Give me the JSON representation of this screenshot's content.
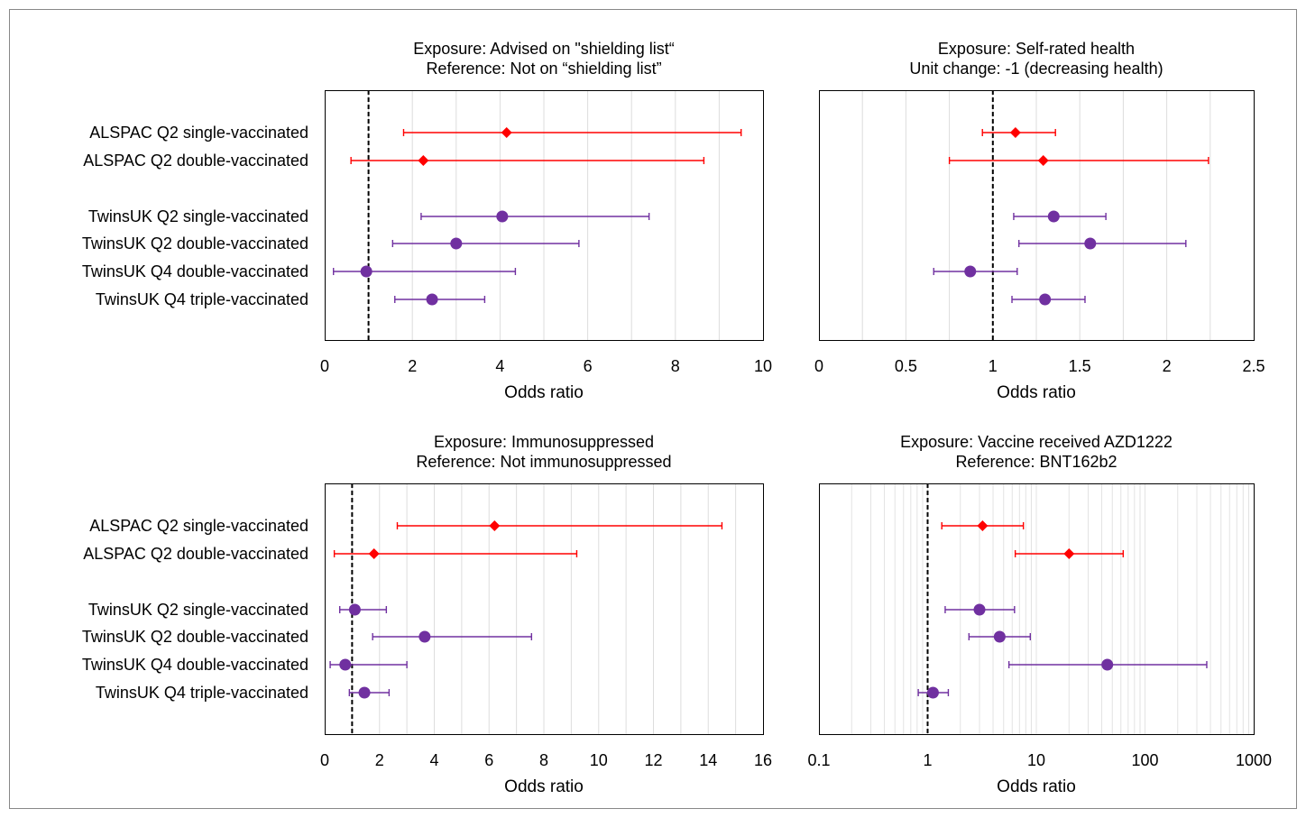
{
  "chart_data": [
    {
      "type": "scatter",
      "subtype": "forest-plot",
      "title": [
        "Exposure: Advised on \"shielding list“",
        "Reference: Not on “shielding list”"
      ],
      "xlabel": "Odds ratio",
      "ylabel": "",
      "xscale": "linear",
      "xlim": [
        0,
        10
      ],
      "xticks": [
        0,
        2,
        4,
        6,
        8,
        10
      ],
      "xtick_labels": [
        "0",
        "2",
        "4",
        "6",
        "8",
        "10"
      ],
      "reference_line": 1,
      "grid": "vertical",
      "categories": [
        "ALSPAC Q2 single-vaccinated",
        "ALSPAC Q2 double-vaccinated",
        "TwinsUK Q2 single-vaccinated",
        "TwinsUK Q2 double-vaccinated",
        "TwinsUK Q4 double-vaccinated",
        "TwinsUK Q4 triple-vaccinated"
      ],
      "points": [
        {
          "label": "ALSPAC Q2 single-vaccinated",
          "or": 4.15,
          "lo": 1.8,
          "hi": 9.5,
          "marker": "diamond",
          "color": "#ff0000"
        },
        {
          "label": "ALSPAC Q2 double-vaccinated",
          "or": 2.25,
          "lo": 0.6,
          "hi": 8.65,
          "marker": "diamond",
          "color": "#ff0000"
        },
        {
          "label": "TwinsUK Q2 single-vaccinated",
          "or": 4.05,
          "lo": 2.2,
          "hi": 7.4,
          "marker": "circle",
          "color": "#7030a0"
        },
        {
          "label": "TwinsUK Q2 double-vaccinated",
          "or": 3.0,
          "lo": 1.55,
          "hi": 5.8,
          "marker": "circle",
          "color": "#7030a0"
        },
        {
          "label": "TwinsUK Q4 double-vaccinated",
          "or": 0.95,
          "lo": 0.2,
          "hi": 4.35,
          "marker": "circle",
          "color": "#7030a0"
        },
        {
          "label": "TwinsUK Q4 triple-vaccinated",
          "or": 2.45,
          "lo": 1.6,
          "hi": 3.65,
          "marker": "circle",
          "color": "#7030a0"
        }
      ]
    },
    {
      "type": "scatter",
      "subtype": "forest-plot",
      "title": [
        "Exposure: Self-rated health",
        "Unit change: -1 (decreasing health)"
      ],
      "xlabel": "Odds ratio",
      "ylabel": "",
      "xscale": "linear",
      "xlim": [
        0,
        2.5
      ],
      "xticks": [
        0,
        0.5,
        1,
        1.5,
        2,
        2.5
      ],
      "xtick_labels": [
        "0",
        "0.5",
        "1",
        "1.5",
        "2",
        "2.5"
      ],
      "reference_line": 1,
      "grid": "vertical",
      "categories": [
        "ALSPAC Q2 single-vaccinated",
        "ALSPAC Q2 double-vaccinated",
        "TwinsUK Q2 single-vaccinated",
        "TwinsUK Q2 double-vaccinated",
        "TwinsUK Q4 double-vaccinated",
        "TwinsUK Q4 triple-vaccinated"
      ],
      "points": [
        {
          "label": "ALSPAC Q2 single-vaccinated",
          "or": 1.13,
          "lo": 0.94,
          "hi": 1.36,
          "marker": "diamond",
          "color": "#ff0000"
        },
        {
          "label": "ALSPAC Q2 double-vaccinated",
          "or": 1.29,
          "lo": 0.75,
          "hi": 2.24,
          "marker": "diamond",
          "color": "#ff0000"
        },
        {
          "label": "TwinsUK Q2 single-vaccinated",
          "or": 1.35,
          "lo": 1.12,
          "hi": 1.65,
          "marker": "circle",
          "color": "#7030a0"
        },
        {
          "label": "TwinsUK Q2 double-vaccinated",
          "or": 1.56,
          "lo": 1.15,
          "hi": 2.11,
          "marker": "circle",
          "color": "#7030a0"
        },
        {
          "label": "TwinsUK Q4 double-vaccinated",
          "or": 0.87,
          "lo": 0.66,
          "hi": 1.14,
          "marker": "circle",
          "color": "#7030a0"
        },
        {
          "label": "TwinsUK Q4 triple-vaccinated",
          "or": 1.3,
          "lo": 1.11,
          "hi": 1.53,
          "marker": "circle",
          "color": "#7030a0"
        }
      ]
    },
    {
      "type": "scatter",
      "subtype": "forest-plot",
      "title": [
        "Exposure: Immunosuppressed",
        "Reference: Not immunosuppressed"
      ],
      "xlabel": "Odds ratio",
      "ylabel": "",
      "xscale": "linear",
      "xlim": [
        0,
        16
      ],
      "xticks": [
        0,
        2,
        4,
        6,
        8,
        10,
        12,
        14,
        16
      ],
      "xtick_labels": [
        "0",
        "2",
        "4",
        "6",
        "8",
        "10",
        "12",
        "14",
        "16"
      ],
      "reference_line": 1,
      "grid": "vertical",
      "categories": [
        "ALSPAC Q2 single-vaccinated",
        "ALSPAC Q2 double-vaccinated",
        "TwinsUK Q2 single-vaccinated",
        "TwinsUK Q2 double-vaccinated",
        "TwinsUK Q4 double-vaccinated",
        "TwinsUK Q4 triple-vaccinated"
      ],
      "points": [
        {
          "label": "ALSPAC Q2 single-vaccinated",
          "or": 6.2,
          "lo": 2.65,
          "hi": 14.5,
          "marker": "diamond",
          "color": "#ff0000"
        },
        {
          "label": "ALSPAC Q2 double-vaccinated",
          "or": 1.8,
          "lo": 0.35,
          "hi": 9.2,
          "marker": "diamond",
          "color": "#ff0000"
        },
        {
          "label": "TwinsUK Q2 single-vaccinated",
          "or": 1.1,
          "lo": 0.55,
          "hi": 2.25,
          "marker": "circle",
          "color": "#7030a0"
        },
        {
          "label": "TwinsUK Q2 double-vaccinated",
          "or": 3.65,
          "lo": 1.75,
          "hi": 7.55,
          "marker": "circle",
          "color": "#7030a0"
        },
        {
          "label": "TwinsUK Q4 double-vaccinated",
          "or": 0.75,
          "lo": 0.2,
          "hi": 3.0,
          "marker": "circle",
          "color": "#7030a0"
        },
        {
          "label": "TwinsUK Q4 triple-vaccinated",
          "or": 1.45,
          "lo": 0.9,
          "hi": 2.35,
          "marker": "circle",
          "color": "#7030a0"
        }
      ]
    },
    {
      "type": "scatter",
      "subtype": "forest-plot",
      "title": [
        "Exposure: Vaccine received AZD1222",
        "Reference: BNT162b2"
      ],
      "xlabel": "Odds ratio",
      "ylabel": "",
      "xscale": "log",
      "xlim": [
        0.1,
        1000
      ],
      "xticks": [
        0.1,
        1,
        10,
        100,
        1000
      ],
      "xtick_labels": [
        "0.1",
        "1",
        "10",
        "100",
        "1000"
      ],
      "reference_line": 1,
      "grid": "vertical-minor",
      "categories": [
        "ALSPAC Q2 single-vaccinated",
        "ALSPAC Q2 double-vaccinated",
        "TwinsUK Q2 single-vaccinated",
        "TwinsUK Q2 double-vaccinated",
        "TwinsUK Q4 double-vaccinated",
        "TwinsUK Q4 triple-vaccinated"
      ],
      "points": [
        {
          "label": "ALSPAC Q2 single-vaccinated",
          "or": 3.2,
          "lo": 1.35,
          "hi": 7.6,
          "marker": "diamond",
          "color": "#ff0000"
        },
        {
          "label": "ALSPAC Q2 double-vaccinated",
          "or": 20,
          "lo": 6.4,
          "hi": 63,
          "marker": "diamond",
          "color": "#ff0000"
        },
        {
          "label": "TwinsUK Q2 single-vaccinated",
          "or": 3.0,
          "lo": 1.45,
          "hi": 6.3,
          "marker": "circle",
          "color": "#7030a0"
        },
        {
          "label": "TwinsUK Q2 double-vaccinated",
          "or": 4.6,
          "lo": 2.4,
          "hi": 8.8,
          "marker": "circle",
          "color": "#7030a0"
        },
        {
          "label": "TwinsUK Q4 double-vaccinated",
          "or": 45,
          "lo": 5.6,
          "hi": 370,
          "marker": "circle",
          "color": "#7030a0"
        },
        {
          "label": "TwinsUK Q4 triple-vaccinated",
          "or": 1.12,
          "lo": 0.82,
          "hi": 1.55,
          "marker": "circle",
          "color": "#7030a0"
        }
      ]
    }
  ]
}
